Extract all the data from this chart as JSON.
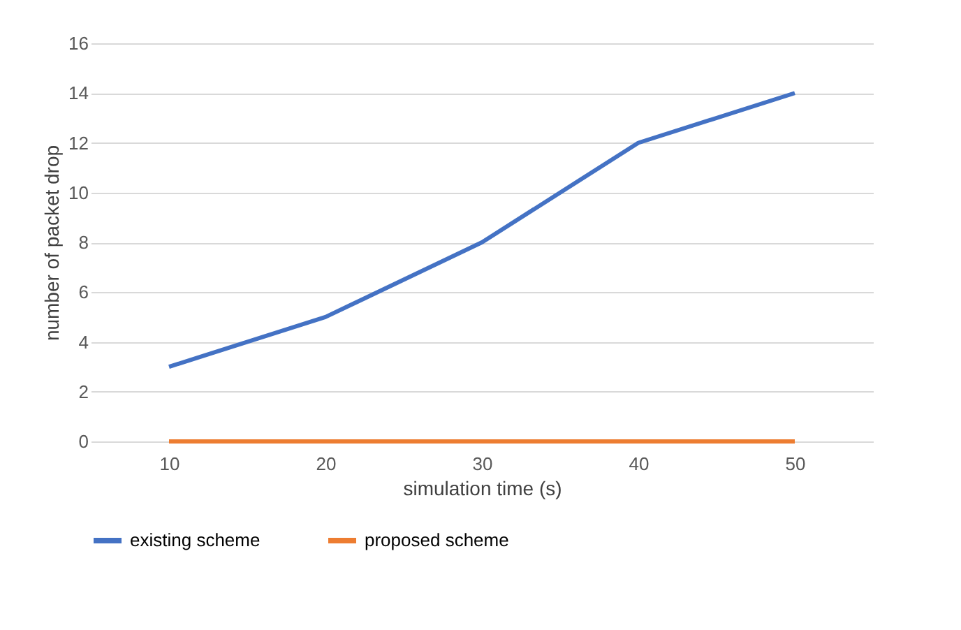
{
  "chart_data": {
    "type": "line",
    "xlabel": "simulation time (s)",
    "ylabel": "number of packet drop",
    "categories": [
      "10",
      "20",
      "30",
      "40",
      "50"
    ],
    "series": [
      {
        "name": "existing scheme",
        "color": "#4472c4",
        "values": [
          3,
          5,
          8,
          12,
          14
        ]
      },
      {
        "name": "proposed scheme",
        "color": "#ed7d31",
        "values": [
          0,
          0,
          0,
          0,
          0
        ]
      }
    ],
    "ylim": [
      0,
      16
    ],
    "yticks": [
      0,
      2,
      4,
      6,
      8,
      10,
      12,
      14,
      16
    ],
    "grid": "y",
    "legend": "bottom",
    "marker": "none",
    "line_style": "solid"
  }
}
